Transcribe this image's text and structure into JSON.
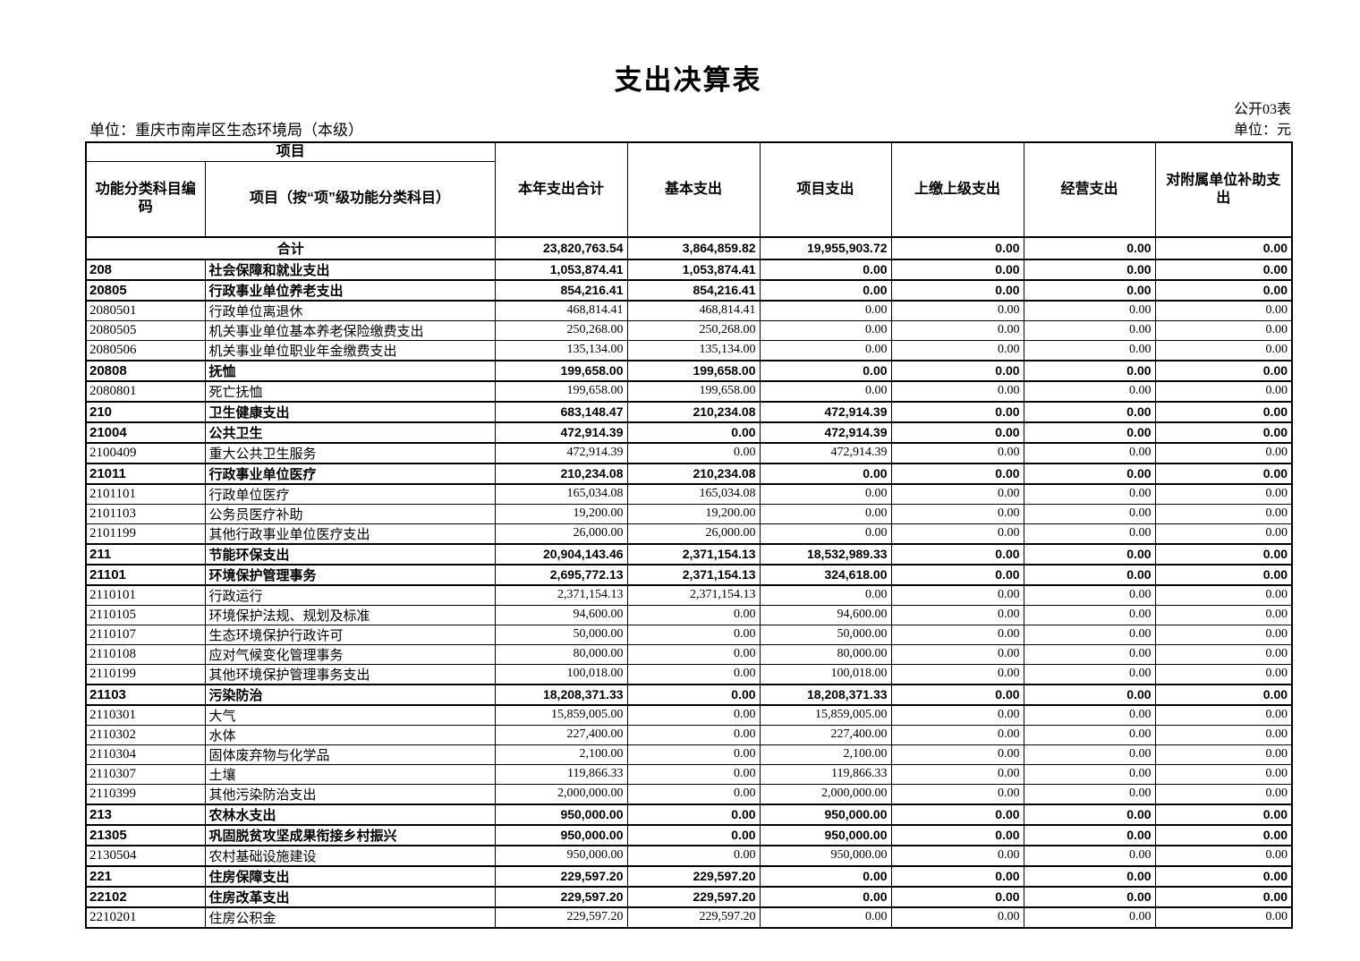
{
  "page": {
    "title": "支出决算表",
    "table_no": "公开03表",
    "org_label": "单位：重庆市南岸区生态环境局（本级）",
    "unit_label": "单位：元"
  },
  "table": {
    "header": {
      "project_group": "项目",
      "col_code": "功能分类科目编码",
      "col_item": "项目（按“项”级功能分类科目）",
      "col_total": "本年支出合计",
      "col_basic": "基本支出",
      "col_project": "项目支出",
      "col_upper": "上缴上级支出",
      "col_operating": "经营支出",
      "col_subsidy": "对附属单位补助支出"
    },
    "total_row": {
      "label": "合计",
      "values": [
        "23,820,763.54",
        "3,864,859.82",
        "19,955,903.72",
        "0.00",
        "0.00",
        "0.00"
      ]
    },
    "rows": [
      {
        "code": "208",
        "name": "社会保障和就业支出",
        "bold": true,
        "values": [
          "1,053,874.41",
          "1,053,874.41",
          "0.00",
          "0.00",
          "0.00",
          "0.00"
        ]
      },
      {
        "code": "20805",
        "name": "行政事业单位养老支出",
        "bold": true,
        "values": [
          "854,216.41",
          "854,216.41",
          "0.00",
          "0.00",
          "0.00",
          "0.00"
        ]
      },
      {
        "code": "2080501",
        "name": "行政单位离退休",
        "bold": false,
        "values": [
          "468,814.41",
          "468,814.41",
          "0.00",
          "0.00",
          "0.00",
          "0.00"
        ]
      },
      {
        "code": "2080505",
        "name": "机关事业单位基本养老保险缴费支出",
        "bold": false,
        "values": [
          "250,268.00",
          "250,268.00",
          "0.00",
          "0.00",
          "0.00",
          "0.00"
        ]
      },
      {
        "code": "2080506",
        "name": "机关事业单位职业年金缴费支出",
        "bold": false,
        "values": [
          "135,134.00",
          "135,134.00",
          "0.00",
          "0.00",
          "0.00",
          "0.00"
        ]
      },
      {
        "code": "20808",
        "name": "抚恤",
        "bold": true,
        "values": [
          "199,658.00",
          "199,658.00",
          "0.00",
          "0.00",
          "0.00",
          "0.00"
        ]
      },
      {
        "code": "2080801",
        "name": "死亡抚恤",
        "bold": false,
        "values": [
          "199,658.00",
          "199,658.00",
          "0.00",
          "0.00",
          "0.00",
          "0.00"
        ]
      },
      {
        "code": "210",
        "name": "卫生健康支出",
        "bold": true,
        "values": [
          "683,148.47",
          "210,234.08",
          "472,914.39",
          "0.00",
          "0.00",
          "0.00"
        ]
      },
      {
        "code": "21004",
        "name": "公共卫生",
        "bold": true,
        "values": [
          "472,914.39",
          "0.00",
          "472,914.39",
          "0.00",
          "0.00",
          "0.00"
        ]
      },
      {
        "code": "2100409",
        "name": "重大公共卫生服务",
        "bold": false,
        "values": [
          "472,914.39",
          "0.00",
          "472,914.39",
          "0.00",
          "0.00",
          "0.00"
        ]
      },
      {
        "code": "21011",
        "name": "行政事业单位医疗",
        "bold": true,
        "values": [
          "210,234.08",
          "210,234.08",
          "0.00",
          "0.00",
          "0.00",
          "0.00"
        ]
      },
      {
        "code": "2101101",
        "name": "行政单位医疗",
        "bold": false,
        "values": [
          "165,034.08",
          "165,034.08",
          "0.00",
          "0.00",
          "0.00",
          "0.00"
        ]
      },
      {
        "code": "2101103",
        "name": "公务员医疗补助",
        "bold": false,
        "values": [
          "19,200.00",
          "19,200.00",
          "0.00",
          "0.00",
          "0.00",
          "0.00"
        ]
      },
      {
        "code": "2101199",
        "name": "其他行政事业单位医疗支出",
        "bold": false,
        "values": [
          "26,000.00",
          "26,000.00",
          "0.00",
          "0.00",
          "0.00",
          "0.00"
        ]
      },
      {
        "code": "211",
        "name": "节能环保支出",
        "bold": true,
        "values": [
          "20,904,143.46",
          "2,371,154.13",
          "18,532,989.33",
          "0.00",
          "0.00",
          "0.00"
        ]
      },
      {
        "code": "21101",
        "name": "环境保护管理事务",
        "bold": true,
        "values": [
          "2,695,772.13",
          "2,371,154.13",
          "324,618.00",
          "0.00",
          "0.00",
          "0.00"
        ]
      },
      {
        "code": "2110101",
        "name": "行政运行",
        "bold": false,
        "values": [
          "2,371,154.13",
          "2,371,154.13",
          "0.00",
          "0.00",
          "0.00",
          "0.00"
        ]
      },
      {
        "code": "2110105",
        "name": "环境保护法规、规划及标准",
        "bold": false,
        "values": [
          "94,600.00",
          "0.00",
          "94,600.00",
          "0.00",
          "0.00",
          "0.00"
        ]
      },
      {
        "code": "2110107",
        "name": "生态环境保护行政许可",
        "bold": false,
        "values": [
          "50,000.00",
          "0.00",
          "50,000.00",
          "0.00",
          "0.00",
          "0.00"
        ]
      },
      {
        "code": "2110108",
        "name": "应对气候变化管理事务",
        "bold": false,
        "values": [
          "80,000.00",
          "0.00",
          "80,000.00",
          "0.00",
          "0.00",
          "0.00"
        ]
      },
      {
        "code": "2110199",
        "name": "其他环境保护管理事务支出",
        "bold": false,
        "values": [
          "100,018.00",
          "0.00",
          "100,018.00",
          "0.00",
          "0.00",
          "0.00"
        ]
      },
      {
        "code": "21103",
        "name": "污染防治",
        "bold": true,
        "values": [
          "18,208,371.33",
          "0.00",
          "18,208,371.33",
          "0.00",
          "0.00",
          "0.00"
        ]
      },
      {
        "code": "2110301",
        "name": "大气",
        "bold": false,
        "values": [
          "15,859,005.00",
          "0.00",
          "15,859,005.00",
          "0.00",
          "0.00",
          "0.00"
        ]
      },
      {
        "code": "2110302",
        "name": "水体",
        "bold": false,
        "values": [
          "227,400.00",
          "0.00",
          "227,400.00",
          "0.00",
          "0.00",
          "0.00"
        ]
      },
      {
        "code": "2110304",
        "name": "固体废弃物与化学品",
        "bold": false,
        "values": [
          "2,100.00",
          "0.00",
          "2,100.00",
          "0.00",
          "0.00",
          "0.00"
        ]
      },
      {
        "code": "2110307",
        "name": "土壤",
        "bold": false,
        "values": [
          "119,866.33",
          "0.00",
          "119,866.33",
          "0.00",
          "0.00",
          "0.00"
        ]
      },
      {
        "code": "2110399",
        "name": "其他污染防治支出",
        "bold": false,
        "values": [
          "2,000,000.00",
          "0.00",
          "2,000,000.00",
          "0.00",
          "0.00",
          "0.00"
        ]
      },
      {
        "code": "213",
        "name": "农林水支出",
        "bold": true,
        "values": [
          "950,000.00",
          "0.00",
          "950,000.00",
          "0.00",
          "0.00",
          "0.00"
        ]
      },
      {
        "code": "21305",
        "name": "巩固脱贫攻坚成果衔接乡村振兴",
        "bold": true,
        "values": [
          "950,000.00",
          "0.00",
          "950,000.00",
          "0.00",
          "0.00",
          "0.00"
        ]
      },
      {
        "code": "2130504",
        "name": "农村基础设施建设",
        "bold": false,
        "values": [
          "950,000.00",
          "0.00",
          "950,000.00",
          "0.00",
          "0.00",
          "0.00"
        ]
      },
      {
        "code": "221",
        "name": "住房保障支出",
        "bold": true,
        "values": [
          "229,597.20",
          "229,597.20",
          "0.00",
          "0.00",
          "0.00",
          "0.00"
        ]
      },
      {
        "code": "22102",
        "name": "住房改革支出",
        "bold": true,
        "values": [
          "229,597.20",
          "229,597.20",
          "0.00",
          "0.00",
          "0.00",
          "0.00"
        ]
      },
      {
        "code": "2210201",
        "name": "住房公积金",
        "bold": false,
        "values": [
          "229,597.20",
          "229,597.20",
          "0.00",
          "0.00",
          "0.00",
          "0.00"
        ]
      }
    ]
  }
}
